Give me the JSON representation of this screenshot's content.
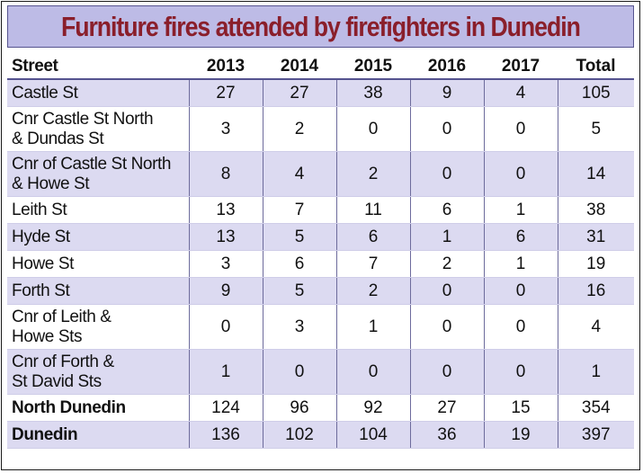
{
  "chart_data": {
    "type": "table",
    "title": "Furniture fires attended by firefighters in Dunedin",
    "columns": [
      "Street",
      "2013",
      "2014",
      "2015",
      "2016",
      "2017",
      "Total"
    ],
    "rows": [
      {
        "street": [
          "Castle St"
        ],
        "values": [
          "27",
          "27",
          "38",
          "9",
          "4",
          "105"
        ],
        "shaded": true,
        "bold": false
      },
      {
        "street": [
          "Cnr Castle St North",
          "& Dundas St"
        ],
        "values": [
          "3",
          "2",
          "0",
          "0",
          "0",
          "5"
        ],
        "shaded": false,
        "bold": false
      },
      {
        "street": [
          "Cnr of Castle St North",
          "& Howe St"
        ],
        "values": [
          "8",
          "4",
          "2",
          "0",
          "0",
          "14"
        ],
        "shaded": true,
        "bold": false
      },
      {
        "street": [
          "Leith St"
        ],
        "values": [
          "13",
          "7",
          "11",
          "6",
          "1",
          "38"
        ],
        "shaded": false,
        "bold": false
      },
      {
        "street": [
          "Hyde St"
        ],
        "values": [
          "13",
          "5",
          "6",
          "1",
          "6",
          "31"
        ],
        "shaded": true,
        "bold": false
      },
      {
        "street": [
          "Howe St"
        ],
        "values": [
          "3",
          "6",
          "7",
          "2",
          "1",
          "19"
        ],
        "shaded": false,
        "bold": false
      },
      {
        "street": [
          "Forth St"
        ],
        "values": [
          "9",
          "5",
          "2",
          "0",
          "0",
          "16"
        ],
        "shaded": true,
        "bold": false
      },
      {
        "street": [
          "Cnr of Leith &",
          "Howe Sts"
        ],
        "values": [
          "0",
          "3",
          "1",
          "0",
          "0",
          "4"
        ],
        "shaded": false,
        "bold": false
      },
      {
        "street": [
          "Cnr of Forth &",
          "St David Sts"
        ],
        "values": [
          "1",
          "0",
          "0",
          "0",
          "0",
          "1"
        ],
        "shaded": true,
        "bold": false
      },
      {
        "street": [
          "North Dunedin"
        ],
        "values": [
          "124",
          "96",
          "92",
          "27",
          "15",
          "354"
        ],
        "shaded": false,
        "bold": true
      },
      {
        "street": [
          "Dunedin"
        ],
        "values": [
          "136",
          "102",
          "104",
          "36",
          "19",
          "397"
        ],
        "shaded": true,
        "bold": true
      }
    ]
  },
  "colors": {
    "title_text": "#8a1f2b",
    "title_band": "#bdbbe6",
    "row_shade": "#dcdaf1",
    "rule": "#55538f"
  }
}
